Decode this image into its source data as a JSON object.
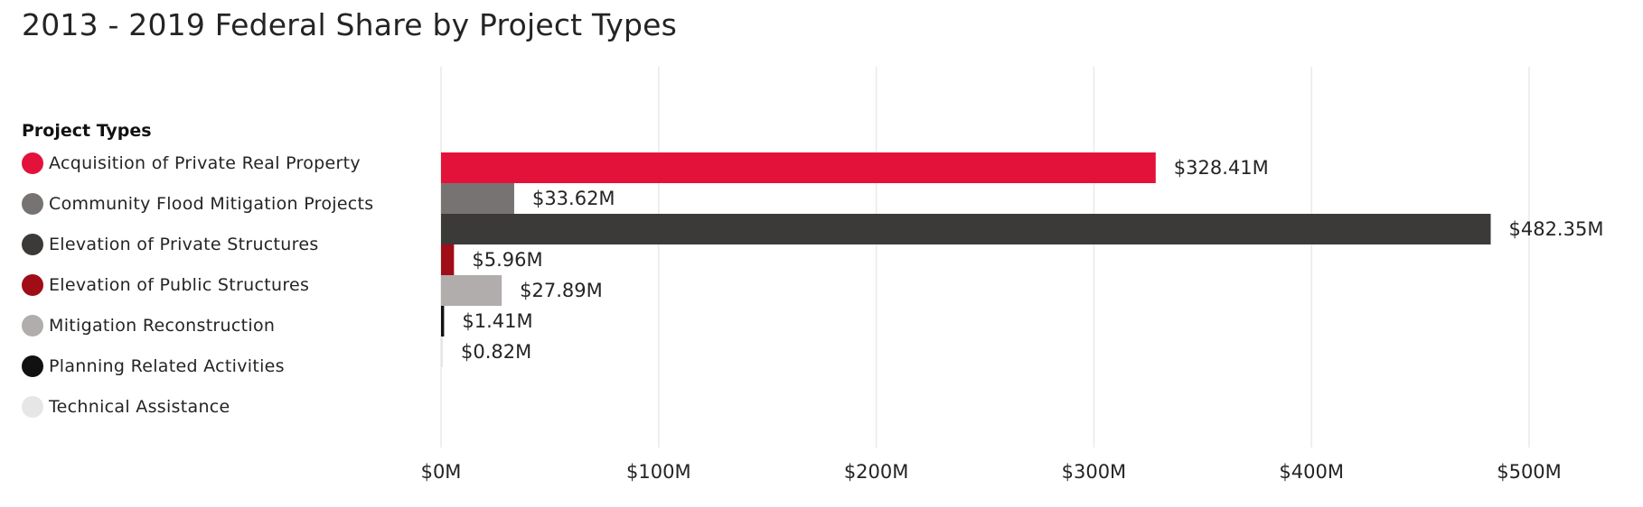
{
  "title": "2013 - 2019 Federal Share by Project Types",
  "chart_data": {
    "type": "bar",
    "orientation": "horizontal",
    "legend_title": "Project Types",
    "legend_position": "left",
    "grid": true,
    "xlim": [
      0,
      520
    ],
    "x_ticks": [
      {
        "value": 0,
        "label": "$0M"
      },
      {
        "value": 100,
        "label": "$100M"
      },
      {
        "value": 200,
        "label": "$200M"
      },
      {
        "value": 300,
        "label": "$300M"
      },
      {
        "value": 400,
        "label": "$400M"
      },
      {
        "value": 500,
        "label": "$500M"
      }
    ],
    "categories": [
      "Acquisition of Private Real Property",
      "Community Flood Mitigation Projects",
      "Elevation of Private Structures",
      "Elevation of Public Structures",
      "Mitigation Reconstruction",
      "Planning Related Activities",
      "Technical Assistance"
    ],
    "values": [
      328.41,
      33.62,
      482.35,
      5.96,
      27.89,
      1.41,
      0.82
    ],
    "data_labels": [
      "$328.41M",
      "$33.62M",
      "$482.35M",
      "$5.96M",
      "$27.89M",
      "$1.41M",
      "$0.82M"
    ],
    "colors": [
      "#e3123b",
      "#777372",
      "#3b3a39",
      "#a00d17",
      "#b0adac",
      "#111111",
      "#e6e6e6"
    ]
  }
}
